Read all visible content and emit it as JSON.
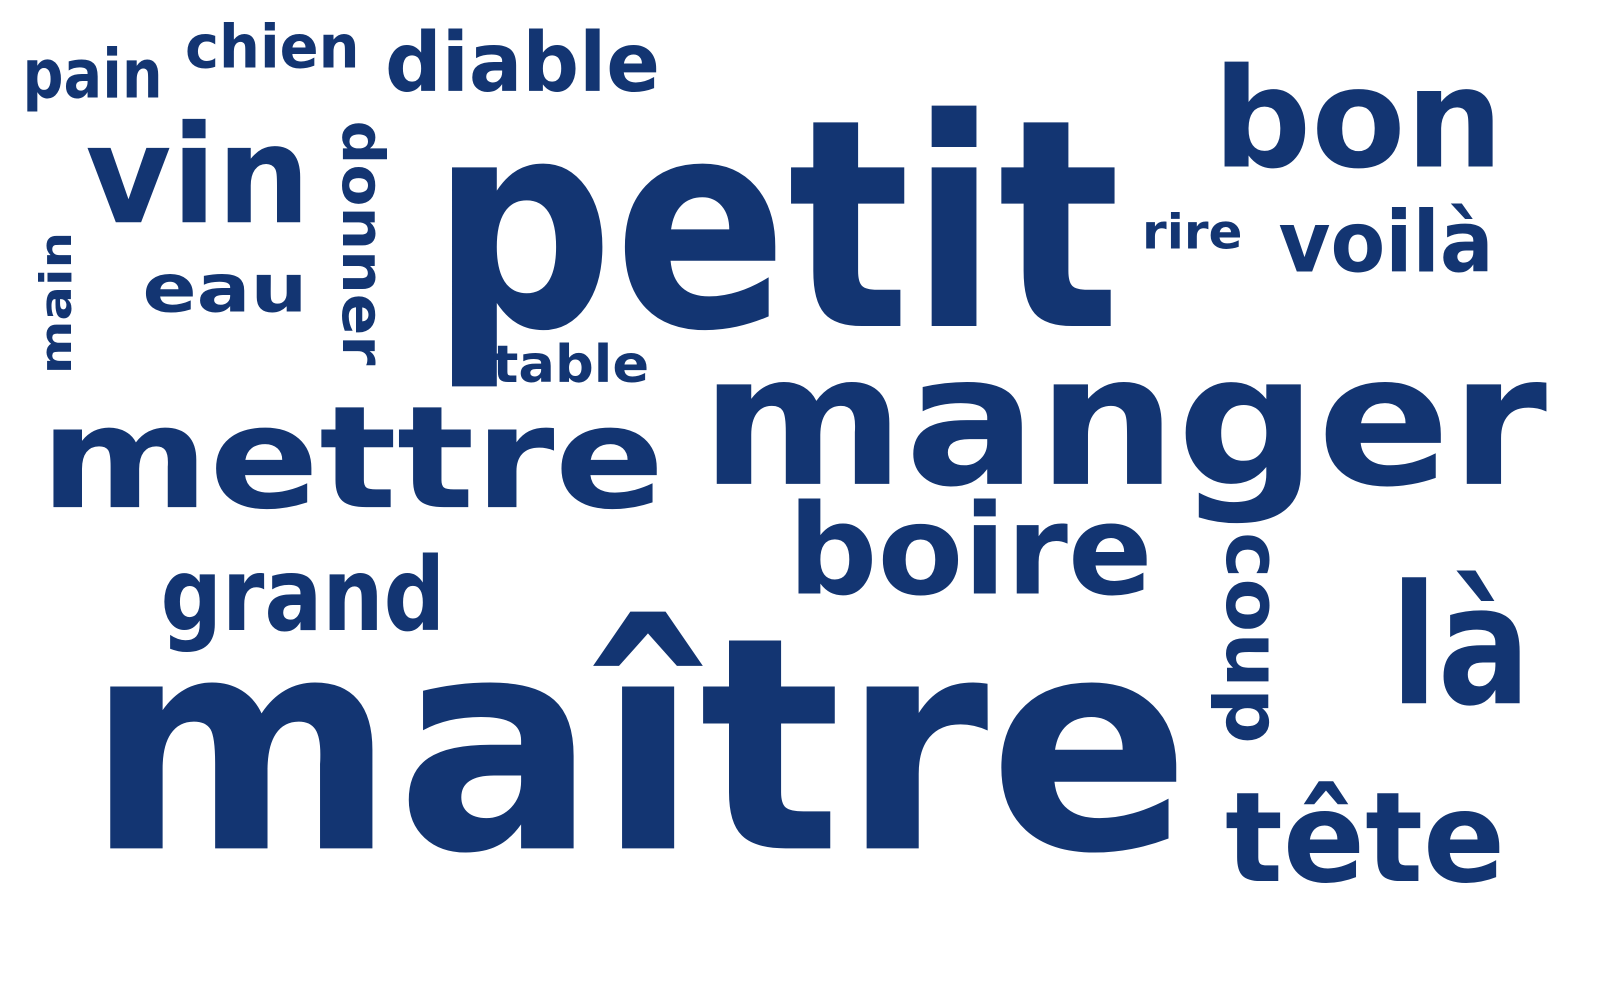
{
  "text_color": "#133572",
  "background_color": "#ffffff",
  "words": [
    {
      "id": "pain",
      "text": "pain",
      "rotated": false
    },
    {
      "id": "chien",
      "text": "chien",
      "rotated": false
    },
    {
      "id": "diable",
      "text": "diable",
      "rotated": false
    },
    {
      "id": "petit",
      "text": "petit",
      "rotated": false
    },
    {
      "id": "bon",
      "text": "bon",
      "rotated": false
    },
    {
      "id": "vin",
      "text": "vin",
      "rotated": false
    },
    {
      "id": "eau",
      "text": "eau",
      "rotated": false
    },
    {
      "id": "main",
      "text": "main",
      "rotated": true
    },
    {
      "id": "donner",
      "text": "donner",
      "rotated": true
    },
    {
      "id": "rire",
      "text": "rire",
      "rotated": false
    },
    {
      "id": "voila",
      "text": "voilà",
      "rotated": false
    },
    {
      "id": "table",
      "text": "table",
      "rotated": false
    },
    {
      "id": "manger",
      "text": "manger",
      "rotated": false
    },
    {
      "id": "mettre",
      "text": "mettre",
      "rotated": false
    },
    {
      "id": "boire",
      "text": "boire",
      "rotated": false
    },
    {
      "id": "coup",
      "text": "coup",
      "rotated": true
    },
    {
      "id": "grand",
      "text": "grand",
      "rotated": false
    },
    {
      "id": "la",
      "text": "là",
      "rotated": false
    },
    {
      "id": "maitre",
      "text": "maître",
      "rotated": false
    },
    {
      "id": "tete",
      "text": "tête",
      "rotated": false
    }
  ]
}
